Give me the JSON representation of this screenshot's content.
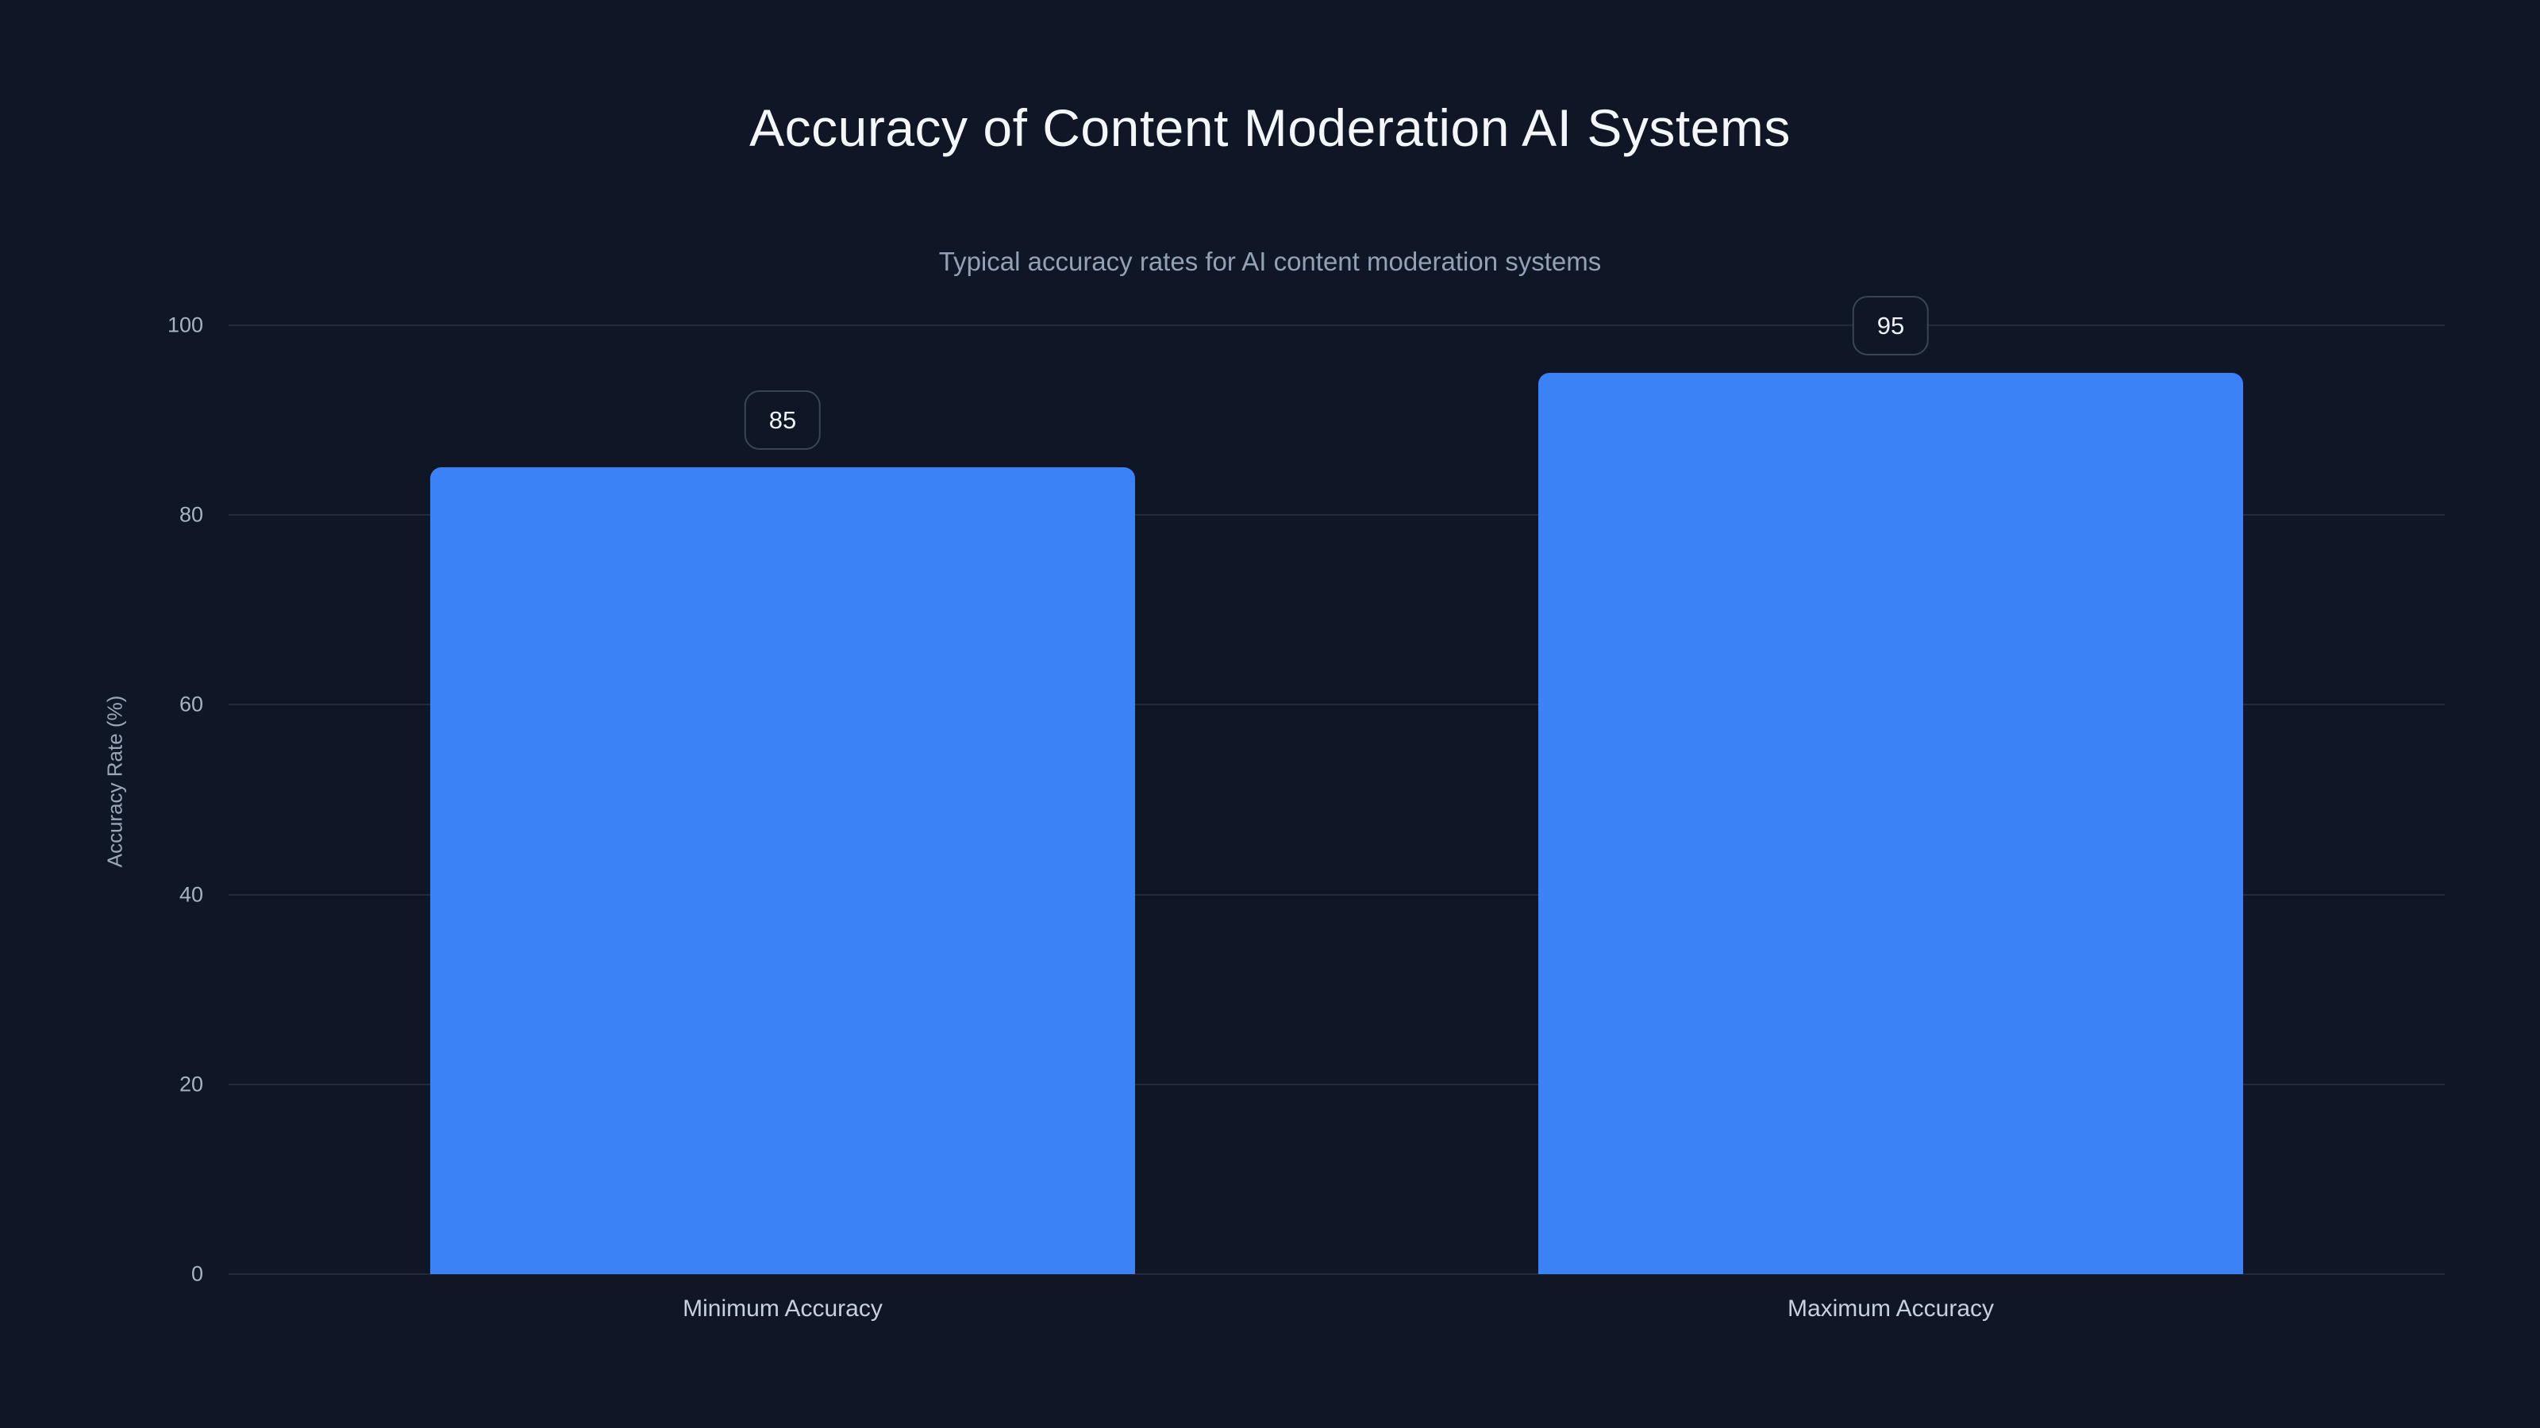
{
  "chart_data": {
    "type": "bar",
    "title": "Accuracy of Content Moderation AI Systems",
    "subtitle": "Typical accuracy rates for AI content moderation systems",
    "ylabel": "Accuracy Rate (%)",
    "xlabel": "",
    "categories": [
      "Minimum Accuracy",
      "Maximum Accuracy"
    ],
    "values": [
      85,
      95
    ],
    "value_labels": [
      "85",
      "95"
    ],
    "ylim": [
      0,
      100
    ],
    "yticks": [
      0,
      20,
      40,
      60,
      80,
      100
    ],
    "grid": "horizontal-only",
    "legend": "none",
    "bar_color": "#3b82f6",
    "colors": {
      "background": "#0f1626",
      "title_text": "#f3f6fa",
      "subtitle_text": "#93a1b5",
      "tick_text": "#a7b2c2",
      "axis_label_text": "#9aa7b8",
      "category_text": "#c7d0dc",
      "gridline": "rgba(148,163,184,0.14)",
      "badge_border": "#3a4556",
      "badge_fill": "#0f1626",
      "badge_text": "#eef2f7"
    }
  }
}
